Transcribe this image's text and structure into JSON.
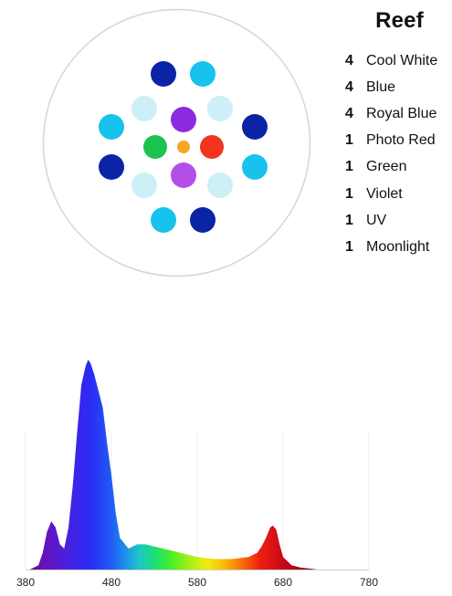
{
  "fixture": {
    "title": "Reef",
    "channels": [
      {
        "count": "4",
        "name": "Cool White",
        "color": "#cdeff7"
      },
      {
        "count": "4",
        "name": "Blue",
        "color": "#17c2ec"
      },
      {
        "count": "4",
        "name": "Royal Blue",
        "color": "#0b24a6"
      },
      {
        "count": "1",
        "name": "Photo Red",
        "color": "#f2341f"
      },
      {
        "count": "1",
        "name": "Green",
        "color": "#1dc34f"
      },
      {
        "count": "1",
        "name": "Violet",
        "color": "#8a2be0"
      },
      {
        "count": "1",
        "name": "UV",
        "color": "#b44ee8"
      },
      {
        "count": "1",
        "name": "Moonlight",
        "color": "#f7a722"
      }
    ]
  },
  "chart_data": {
    "type": "area",
    "title": "",
    "xlabel": "",
    "ylabel": "",
    "xlim": [
      380,
      780
    ],
    "ylim": [
      0,
      1
    ],
    "grid": true,
    "x_ticks": [
      "380",
      "480",
      "580",
      "680",
      "780"
    ],
    "series": [
      {
        "x": [
          385,
          395,
          400,
          405,
          410,
          415,
          420,
          425,
          430,
          435,
          440,
          445,
          450,
          453,
          456,
          460,
          465,
          470,
          475,
          480,
          485,
          490,
          500,
          510,
          520,
          530,
          540,
          560,
          580,
          600,
          620,
          640,
          650,
          655,
          660,
          665,
          668,
          672,
          676,
          680,
          690,
          700,
          720,
          750,
          780
        ],
        "y": [
          0.0,
          0.02,
          0.08,
          0.18,
          0.23,
          0.2,
          0.12,
          0.1,
          0.2,
          0.4,
          0.65,
          0.88,
          0.97,
          1.0,
          0.98,
          0.93,
          0.85,
          0.77,
          0.6,
          0.45,
          0.27,
          0.15,
          0.1,
          0.12,
          0.12,
          0.11,
          0.1,
          0.08,
          0.06,
          0.05,
          0.05,
          0.06,
          0.08,
          0.11,
          0.15,
          0.2,
          0.21,
          0.19,
          0.12,
          0.06,
          0.02,
          0.01,
          0.0,
          0.0,
          0.0
        ]
      }
    ]
  }
}
